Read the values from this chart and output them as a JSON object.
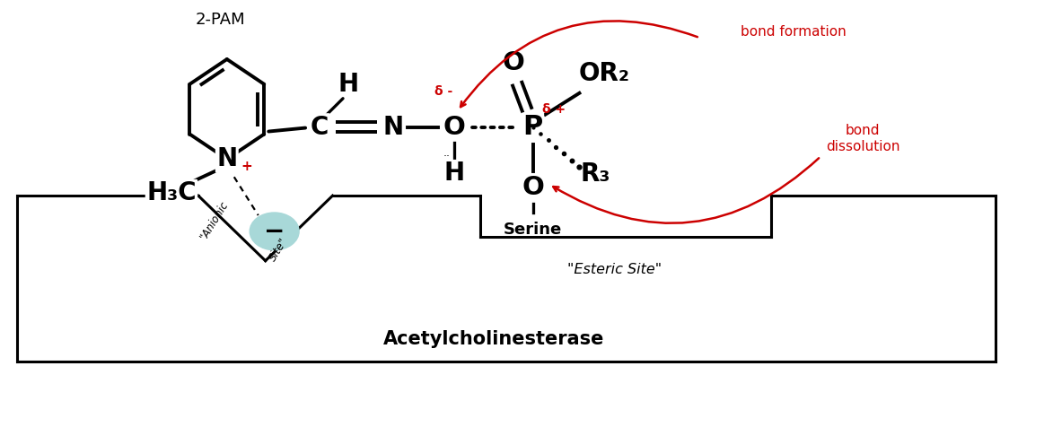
{
  "bg_color": "#ffffff",
  "black": "#000000",
  "red": "#cc0000",
  "teal": "#a8d8d8",
  "figsize": [
    11.63,
    4.76
  ],
  "dpi": 100,
  "title_text": "Acetylcholinesterase",
  "label_2pam": "2-PAM",
  "label_esteric": "\"Esteric Site\"",
  "label_serine": "Serine",
  "label_bond_formation": "bond formation",
  "label_bond_dissolution": "bond\ndissolution"
}
